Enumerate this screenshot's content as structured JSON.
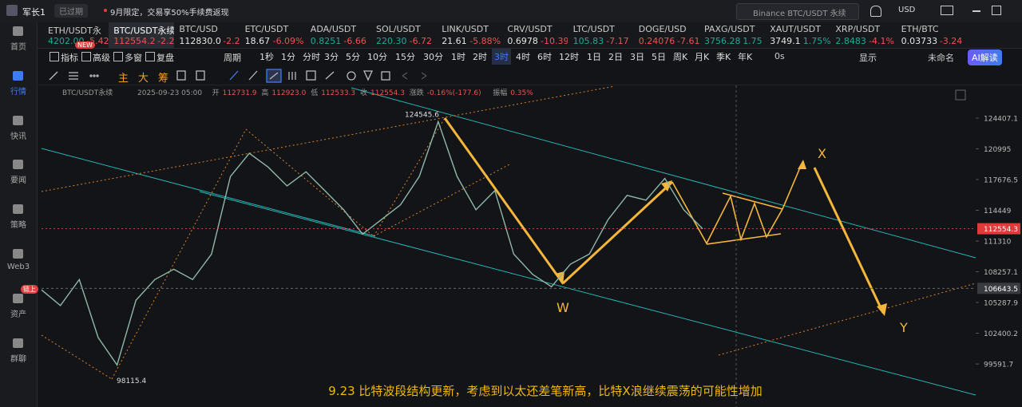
{
  "topbar": {
    "user": "军长1",
    "badge": "已过期",
    "notice": "9月限定，交易享50%手续费返现",
    "search": "Binance BTC/USDT 永续",
    "currency": "USD"
  },
  "tickers": [
    {
      "symbol": "ETH/USDT永",
      "price": "4202.00",
      "change": "-5.42",
      "color": "#26a69a"
    },
    {
      "symbol": "BTC/USDT永续",
      "price": "112554.2",
      "change": "-2.28%",
      "color": "#ef5350"
    },
    {
      "symbol": "BTC/USD",
      "price": "112830.0",
      "change": "-2.2",
      "color": "#e6e6e6"
    },
    {
      "symbol": "ETC/USDT",
      "price": "18.67",
      "change": "-6.09%",
      "color": "#e6e6e6"
    },
    {
      "symbol": "ADA/USDT",
      "price": "0.8251",
      "change": "-6.66",
      "color": "#26a69a"
    },
    {
      "symbol": "SOL/USDT",
      "price": "220.30",
      "change": "-6.72",
      "color": "#26a69a"
    },
    {
      "symbol": "LINK/USDT",
      "price": "21.61",
      "change": "-5.88%",
      "color": "#e6e6e6"
    },
    {
      "symbol": "CRV/USDT",
      "price": "0.6978",
      "change": "-10.39",
      "color": "#e6e6e6"
    },
    {
      "symbol": "LTC/USDT",
      "price": "105.83",
      "change": "-7.17",
      "color": "#26a69a"
    },
    {
      "symbol": "DOGE/USD",
      "price": "0.24076",
      "change": "-7.61",
      "color": "#ef5350"
    },
    {
      "symbol": "PAXG/USDT",
      "price": "3756.28",
      "change": "1.75",
      "color": "#26a69a"
    },
    {
      "symbol": "XAUT/USDT",
      "price": "3749.1",
      "change": "1.75%",
      "color": "#e6e6e6"
    },
    {
      "symbol": "XRP/USDT",
      "price": "2.8483",
      "change": "-4.1%",
      "color": "#26a69a"
    },
    {
      "symbol": "ETH/BTC",
      "price": "0.03733",
      "change": "-3.24",
      "color": "#e6e6e6"
    }
  ],
  "active_ticker": 1,
  "sidebar": [
    {
      "label": "首页"
    },
    {
      "label": "行情"
    },
    {
      "label": "快讯"
    },
    {
      "label": "要闻"
    },
    {
      "label": "策略"
    },
    {
      "label": "Web3"
    },
    {
      "label": "资产",
      "badge": "链上"
    },
    {
      "label": "群聊"
    }
  ],
  "active_sidebar": 1,
  "toolbar": {
    "tools": [
      "指标",
      "高级",
      "多窗",
      "复盘"
    ],
    "new_badge": "NEW",
    "period_label": "周期",
    "periods": [
      "1秒",
      "1分",
      "分时",
      "3分",
      "5分",
      "10分",
      "15分",
      "30分",
      "1时",
      "2时",
      "3时",
      "4时",
      "6时",
      "12时",
      "1日",
      "2日",
      "3日",
      "5日",
      "周K",
      "月K",
      "季K",
      "年K"
    ],
    "active_period": 10,
    "countdown": "0s",
    "display": "显示",
    "layout_name": "未命名",
    "ai_button": "AI解读"
  },
  "draw_toolbar": {
    "indicators": [
      "主",
      "大",
      "筹"
    ]
  },
  "chart_data": {
    "type": "line",
    "info": [
      "BTC/USDT永续",
      "2025-09-23 05:00",
      "开",
      "112731.9",
      "高",
      "112923.0",
      "低",
      "112533.3",
      "收",
      "112554.3",
      "涨跌",
      "-0.16%(-177.6)",
      "振幅",
      "0.35%"
    ],
    "categories": [
      null,
      null,
      null,
      null,
      null,
      null,
      null,
      null,
      null,
      null,
      null,
      null,
      null,
      null,
      null,
      null,
      null,
      null,
      null,
      null,
      null,
      null,
      null,
      null,
      null,
      null,
      null,
      null,
      null,
      null,
      null,
      null,
      null,
      null,
      null,
      null
    ],
    "values": [
      106500,
      105000,
      107500,
      102000,
      99500,
      105500,
      107500,
      108500,
      107500,
      110000,
      118000,
      120500,
      119000,
      117000,
      118500,
      116500,
      114500,
      112000,
      113500,
      115000,
      118000,
      124000,
      118000,
      114500,
      116500,
      110000,
      108000,
      106800,
      109000,
      110000,
      113500,
      116000,
      115500,
      117800,
      114500,
      112554.3
    ],
    "color": "#8fb8a8",
    "log_scale": true,
    "ylim": [
      96485,
      128043
    ],
    "yticks": [
      124407.1,
      120995.0,
      117676.5,
      114449.0,
      111310.0,
      108257.1,
      105287.9,
      102400.2,
      99591.7
    ],
    "last_price": 112554.3,
    "crosshair_price": 106643.5,
    "high_label": 124545.6,
    "low_label": 98115.4,
    "wave_labels": [
      "W",
      "X",
      "Y"
    ],
    "caption": "9.23 比特波段结构更新，考虑到以太还差笔新高，比特X浪继续震荡的可能性增加"
  }
}
